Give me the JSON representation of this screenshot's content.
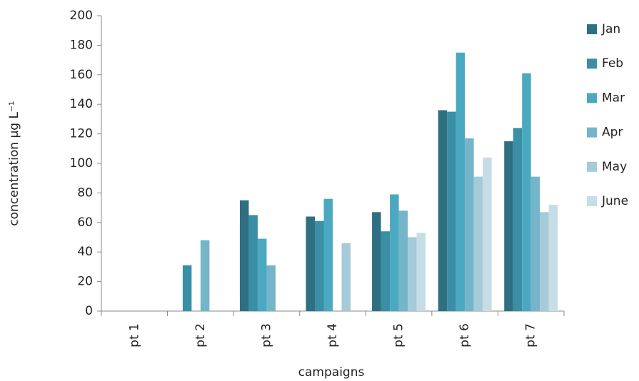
{
  "chart_data": {
    "type": "bar",
    "x_label": "campaigns",
    "y_label": "concentration µg L⁻¹",
    "categories": [
      "pt 1",
      "pt 2",
      "pt 3",
      "pt 4",
      "pt 5",
      "pt 6",
      "pt 7"
    ],
    "series": [
      {
        "name": "Jan",
        "color": "#2e6f82",
        "values": [
          null,
          null,
          75,
          64,
          67,
          136,
          115
        ]
      },
      {
        "name": "Feb",
        "color": "#3a8ea5",
        "values": [
          null,
          31,
          65,
          61,
          54,
          135,
          124
        ]
      },
      {
        "name": "Mar",
        "color": "#4aa9c0",
        "values": [
          null,
          null,
          49,
          76,
          79,
          175,
          161
        ]
      },
      {
        "name": "Apr",
        "color": "#74b5ca",
        "values": [
          null,
          48,
          31,
          null,
          68,
          117,
          91
        ]
      },
      {
        "name": "May",
        "color": "#a5cad8",
        "values": [
          null,
          null,
          null,
          46,
          50,
          91,
          67
        ]
      },
      {
        "name": "June",
        "color": "#c6dde6",
        "values": [
          null,
          null,
          null,
          null,
          53,
          104,
          72
        ]
      }
    ],
    "ylim": [
      0,
      200
    ],
    "yticks": [
      0,
      20,
      40,
      60,
      80,
      100,
      120,
      140,
      160,
      180,
      200
    ],
    "grid": false,
    "legend": "right"
  }
}
